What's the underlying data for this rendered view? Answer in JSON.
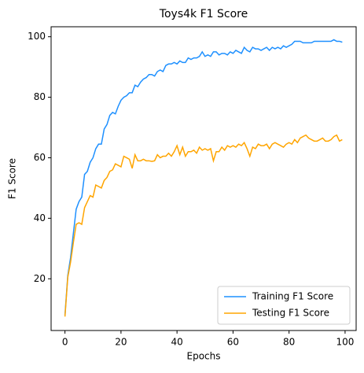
{
  "chart_data": {
    "type": "line",
    "title": "Toys4k F1 Score",
    "xlabel": "Epochs",
    "ylabel": "F1 Score",
    "x": [
      0,
      1,
      2,
      3,
      4,
      5,
      6,
      7,
      8,
      9,
      10,
      11,
      12,
      13,
      14,
      15,
      16,
      17,
      18,
      19,
      20,
      21,
      22,
      23,
      24,
      25,
      26,
      27,
      28,
      29,
      30,
      31,
      32,
      33,
      34,
      35,
      36,
      37,
      38,
      39,
      40,
      41,
      42,
      43,
      44,
      45,
      46,
      47,
      48,
      49,
      50,
      51,
      52,
      53,
      54,
      55,
      56,
      57,
      58,
      59,
      60,
      61,
      62,
      63,
      64,
      65,
      66,
      67,
      68,
      69,
      70,
      71,
      72,
      73,
      74,
      75,
      76,
      77,
      78,
      79,
      80,
      81,
      82,
      83,
      84,
      85,
      86,
      87,
      88,
      89,
      90,
      91,
      92,
      93,
      94,
      95,
      96,
      97,
      98,
      99
    ],
    "series": [
      {
        "name": "Training F1 Score",
        "color": "#1e90ff",
        "values": [
          8,
          21,
          27,
          35,
          43,
          45.5,
          47,
          54.5,
          55.5,
          58.5,
          60,
          63,
          64.5,
          64.5,
          69.5,
          71,
          74,
          75,
          74.5,
          77,
          79,
          80,
          80.5,
          81.5,
          81.5,
          84,
          83.5,
          85,
          86,
          86.5,
          87.5,
          87.5,
          87,
          88.5,
          89,
          88.5,
          90.5,
          91,
          91,
          91.5,
          91,
          92,
          91.5,
          91.5,
          93,
          92.5,
          93,
          93,
          93.5,
          95,
          93.5,
          94,
          93.5,
          95,
          95,
          94,
          94.5,
          94.5,
          94,
          95,
          94.5,
          95.5,
          95,
          94.5,
          96.5,
          95.5,
          95,
          96.5,
          96,
          96,
          95.5,
          96,
          96.5,
          95.5,
          96.5,
          96,
          96.5,
          96,
          97,
          96.5,
          97,
          97.5,
          98.5,
          98.5,
          98.5,
          98,
          98,
          98,
          98,
          98.5,
          98.5,
          98.5,
          98.5,
          98.5,
          98.5,
          98.5,
          99,
          98.5,
          98.5,
          98.2
        ]
      },
      {
        "name": "Testing F1 Score",
        "color": "#ffa500",
        "values": [
          7.5,
          20.5,
          25.5,
          32,
          38,
          38.5,
          38,
          43.5,
          45.5,
          47.5,
          47,
          51,
          50.5,
          50,
          52.5,
          53.5,
          55.5,
          56,
          58,
          57.5,
          57,
          60.5,
          60,
          59.5,
          56.5,
          61,
          59,
          59,
          59.5,
          59,
          59,
          58.8,
          59,
          61,
          60,
          60.5,
          60.5,
          61.5,
          60.5,
          62,
          64,
          61,
          63.5,
          60.5,
          62,
          62,
          62.5,
          61.5,
          63.5,
          62.5,
          63,
          62.5,
          63,
          59,
          62,
          62,
          63.5,
          62.5,
          64,
          63.5,
          64,
          63.5,
          64.5,
          64,
          65,
          63,
          60.5,
          63.5,
          63,
          64.5,
          64,
          64,
          64.5,
          63,
          64.5,
          65,
          64.5,
          64,
          63.5,
          64.5,
          65,
          64.5,
          66,
          65,
          66.5,
          67,
          67.5,
          66.5,
          66,
          65.5,
          65.5,
          66,
          66.5,
          65.5,
          65.5,
          66,
          67,
          67.5,
          65.5,
          66
        ]
      }
    ],
    "xlim": [
      -4.95,
      103.95
    ],
    "ylim": [
      2.9,
      103.3
    ],
    "xticks": [
      0,
      20,
      40,
      60,
      80,
      100
    ],
    "yticks": [
      20,
      40,
      60,
      80,
      100
    ],
    "legend": "lower right"
  }
}
